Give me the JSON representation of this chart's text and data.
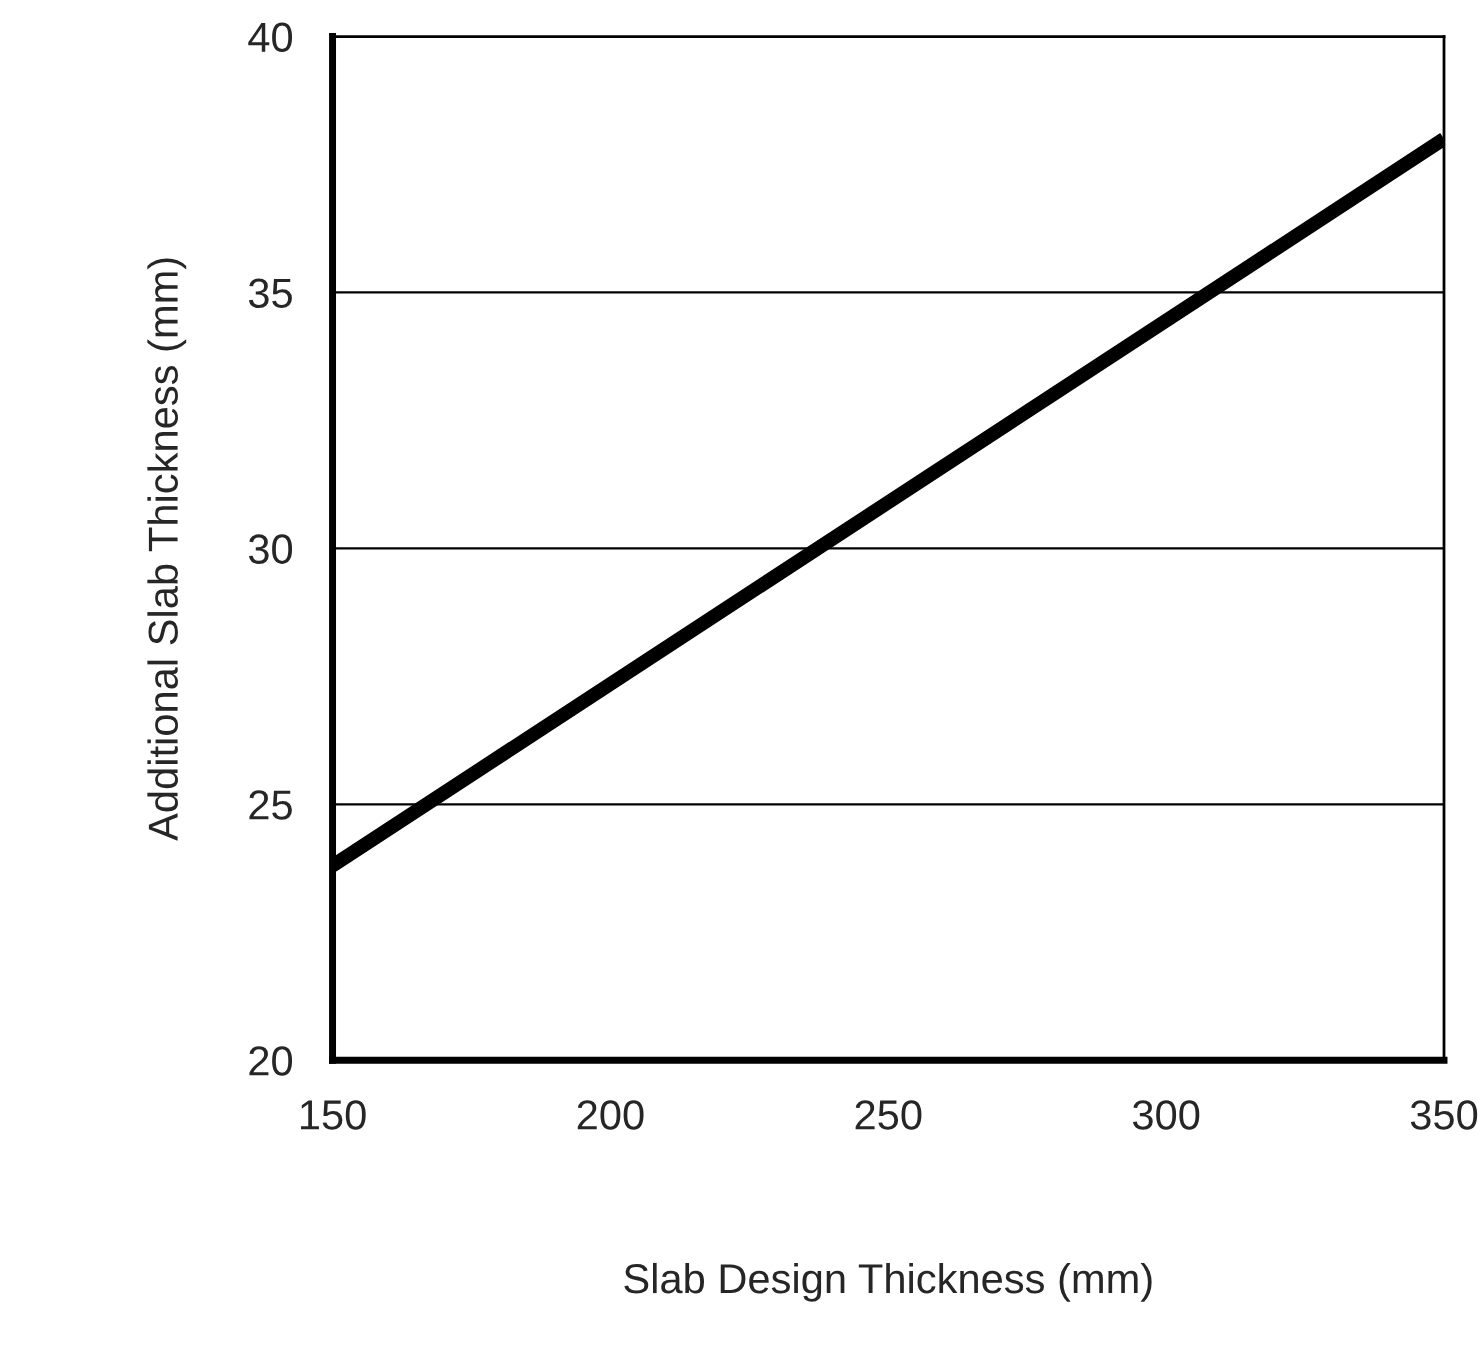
{
  "chart_data": {
    "type": "line",
    "xlabel": "Slab Design Thickness (mm)",
    "ylabel": "Additional Slab Thickness (mm)",
    "x": [
      150,
      350
    ],
    "series": [
      {
        "color": "#000000",
        "values": [
          23.8,
          38.0
        ]
      }
    ],
    "xlim": [
      150,
      350
    ],
    "ylim": [
      20,
      40
    ],
    "xticks": [
      150,
      200,
      250,
      300,
      350
    ],
    "yticks": [
      20,
      25,
      30,
      35,
      40
    ],
    "grid": "y",
    "line_style": "solid"
  }
}
